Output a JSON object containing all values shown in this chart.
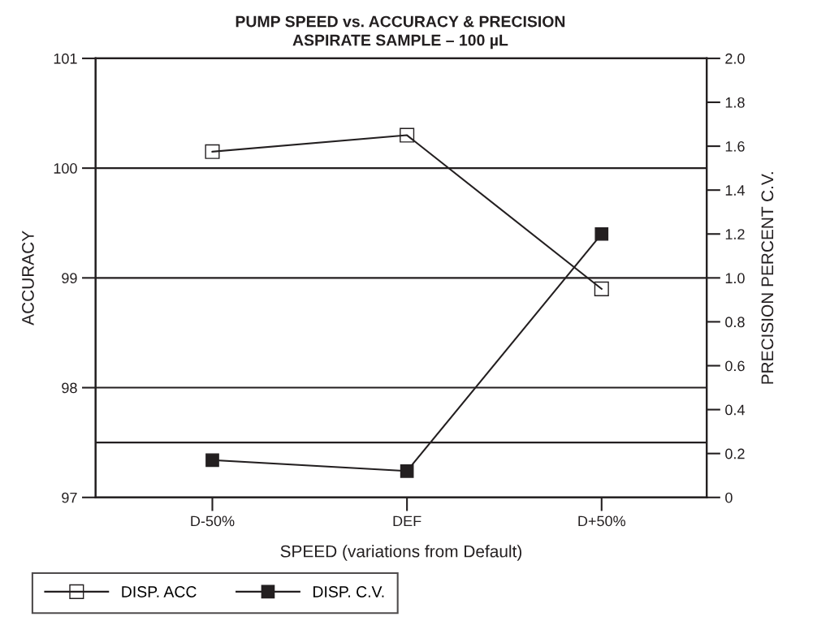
{
  "chart_data": {
    "type": "line",
    "title": "PUMP SPEED vs. ACCURACY & PRECISION",
    "subtitle": "ASPIRATE SAMPLE – 100 µL",
    "xlabel": "SPEED (variations from Default)",
    "ylabel": "ACCURACY",
    "y2label": "PRECISION PERCENT C.V.",
    "categories": [
      "D-50%",
      "DEF",
      "D+50%"
    ],
    "series": [
      {
        "name": "DISP. ACC",
        "color": "#231f20",
        "values": [
          100.15,
          100.3,
          98.9
        ]
      },
      {
        "name": "DISP. C.V.",
        "color": "#231f20",
        "values": [
          0.17,
          0.12,
          1.2
        ],
        "axis": "y2"
      }
    ],
    "ylim": [
      97,
      101
    ],
    "yticks": [
      97,
      98,
      99,
      100,
      101
    ],
    "y2lim": [
      0,
      2
    ],
    "y2ticks": [
      0,
      0.2,
      0.4,
      0.6,
      0.8,
      {
        "value": 1,
        "label": "1.0"
      },
      1.2,
      1.4,
      1.6,
      1.8,
      {
        "value": 2,
        "label": "2.0"
      }
    ],
    "ref_lines": [
      {
        "axis": "y",
        "value": 97.5,
        "label": null
      }
    ],
    "grid": "y",
    "legend": "bottom left",
    "marker": "square",
    "line_style": "solid"
  }
}
